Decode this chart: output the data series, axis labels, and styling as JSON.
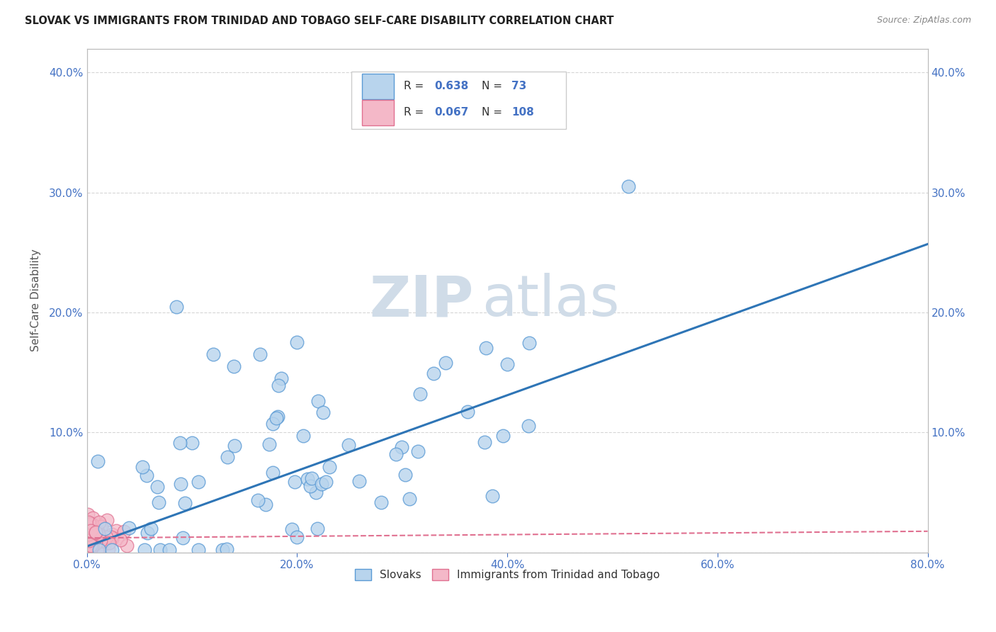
{
  "title": "SLOVAK VS IMMIGRANTS FROM TRINIDAD AND TOBAGO SELF-CARE DISABILITY CORRELATION CHART",
  "source": "Source: ZipAtlas.com",
  "ylabel": "Self-Care Disability",
  "xlim": [
    0.0,
    0.8
  ],
  "ylim": [
    0.0,
    0.42
  ],
  "xticks": [
    0.0,
    0.2,
    0.4,
    0.6,
    0.8
  ],
  "yticks": [
    0.0,
    0.1,
    0.2,
    0.3,
    0.4
  ],
  "xticklabels": [
    "0.0%",
    "20.0%",
    "40.0%",
    "60.0%",
    "80.0%"
  ],
  "yticklabels": [
    "",
    "10.0%",
    "20.0%",
    "30.0%",
    "40.0%"
  ],
  "slovak_R": 0.638,
  "slovak_N": 73,
  "tt_R": 0.067,
  "tt_N": 108,
  "slovak_color": "#b8d4ed",
  "slovak_edge_color": "#5b9bd5",
  "tt_color": "#f4b8c8",
  "tt_edge_color": "#e07090",
  "trendline_slovak_color": "#2e75b6",
  "trendline_tt_color": "#e07090",
  "watermark_zip_color": "#d0dce8",
  "watermark_atlas_color": "#d0dce8",
  "grid_color": "#cccccc",
  "tick_color": "#4472c4",
  "title_color": "#222222",
  "ylabel_color": "#555555",
  "source_color": "#888888",
  "background_color": "#ffffff",
  "slovak_trendline_slope": 0.315,
  "slovak_trendline_intercept": 0.005,
  "tt_trendline_slope": 0.007,
  "tt_trendline_intercept": 0.012
}
